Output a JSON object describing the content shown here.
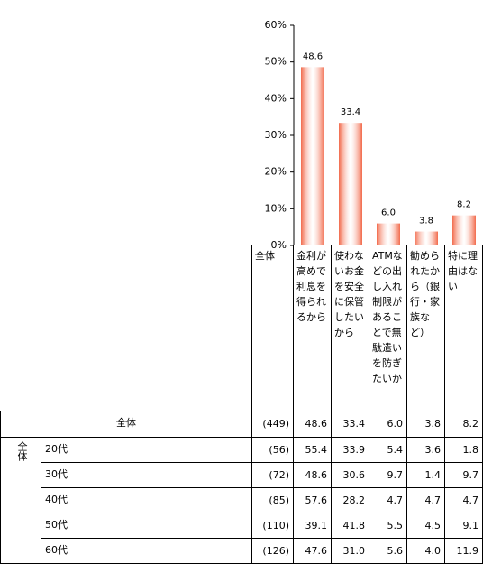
{
  "chart_data": {
    "type": "bar",
    "categories": [
      "金利が高めで利息を得られるから",
      "使わないお金を安全に保管したいから",
      "ATMなどの出し入れ制限があることで無駄遣いを防ぎたいか",
      "勧められたから（銀行・家族など）",
      "特に理由はない"
    ],
    "values": [
      48.6,
      33.4,
      6.0,
      3.8,
      8.2
    ],
    "value_labels": [
      "48.6",
      "33.4",
      "6.0",
      "3.8",
      "8.2"
    ],
    "color": "#f26a4b",
    "ylim": [
      0,
      60
    ],
    "yticks": [
      {
        "value": 0,
        "label": "0%"
      },
      {
        "value": 10,
        "label": "10%"
      },
      {
        "value": 20,
        "label": "20%"
      },
      {
        "value": 30,
        "label": "30%"
      },
      {
        "value": 40,
        "label": "40%"
      },
      {
        "value": 50,
        "label": "50%"
      },
      {
        "value": 60,
        "label": "60%"
      }
    ]
  },
  "table": {
    "count_header": "全体",
    "group_label": "全体",
    "rows": [
      {
        "label": "全体",
        "n": "(449)",
        "values": [
          "48.6",
          "33.4",
          "6.0",
          "3.8",
          "8.2"
        ]
      },
      {
        "label": "20代",
        "n": "(56)",
        "values": [
          "55.4",
          "33.9",
          "5.4",
          "3.6",
          "1.8"
        ]
      },
      {
        "label": "30代",
        "n": "(72)",
        "values": [
          "48.6",
          "30.6",
          "9.7",
          "1.4",
          "9.7"
        ]
      },
      {
        "label": "40代",
        "n": "(85)",
        "values": [
          "57.6",
          "28.2",
          "4.7",
          "4.7",
          "4.7"
        ]
      },
      {
        "label": "50代",
        "n": "(110)",
        "values": [
          "39.1",
          "41.8",
          "5.5",
          "4.5",
          "9.1"
        ]
      },
      {
        "label": "60代",
        "n": "(126)",
        "values": [
          "47.6",
          "31.0",
          "5.6",
          "4.0",
          "11.9"
        ]
      }
    ]
  }
}
